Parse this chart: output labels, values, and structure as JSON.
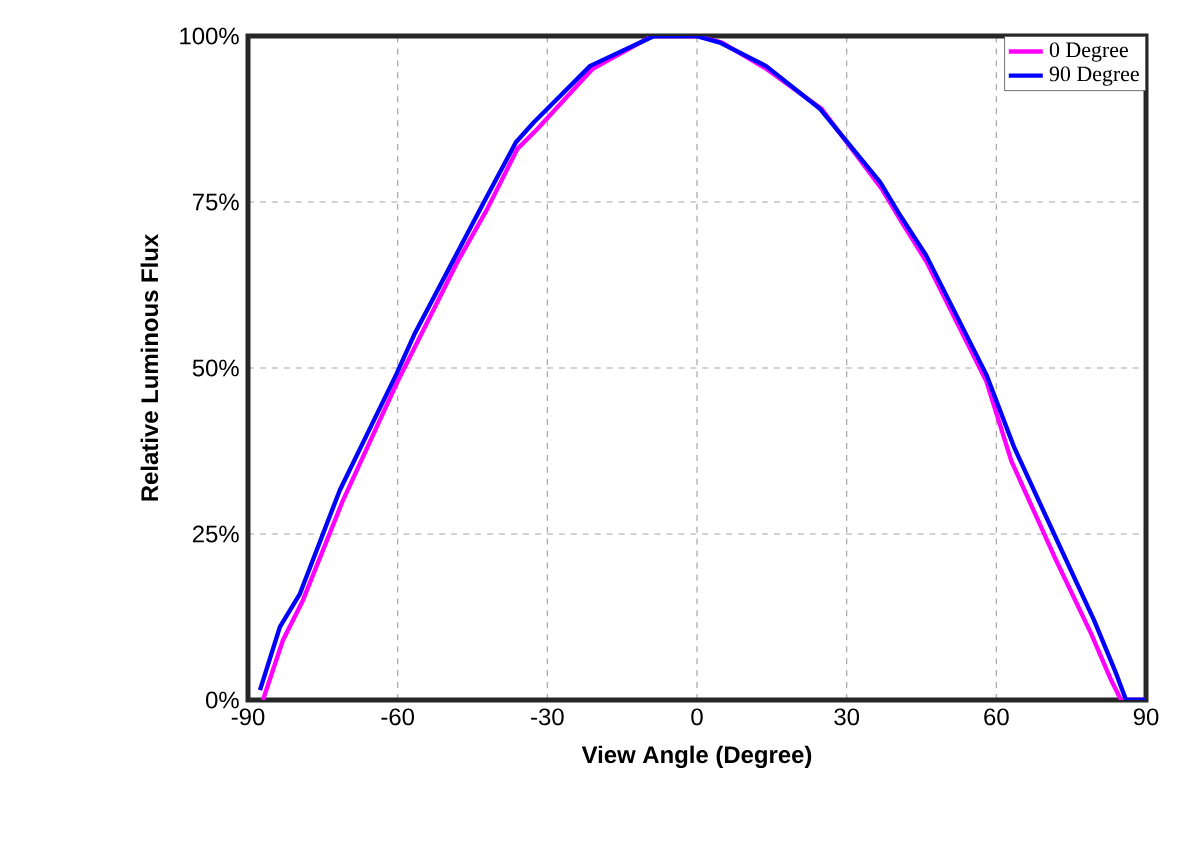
{
  "chart_data": {
    "type": "line",
    "xlabel": "View Angle (Degree)",
    "ylabel": "Relative Luminous Flux",
    "xlim": [
      -90,
      90
    ],
    "xticks": [
      -90,
      -60,
      -30,
      0,
      30,
      60,
      90
    ],
    "ylim": [
      0,
      100
    ],
    "yticks": [
      {
        "value": 0,
        "label": "0%"
      },
      {
        "value": 25,
        "label": "25%"
      },
      {
        "value": 50,
        "label": "50%"
      },
      {
        "value": 75,
        "label": "75%"
      },
      {
        "value": 100,
        "label": "100%"
      }
    ],
    "grid": true,
    "legend": "top right",
    "line_style": "solid",
    "marker": "none",
    "series": [
      {
        "name": "0 Degree",
        "color": "#ff00ff",
        "x": [
          -87,
          -83,
          -79,
          -71,
          -60,
          -56,
          -48,
          -42,
          -36,
          -32,
          -21,
          -9,
          0,
          5,
          14,
          25,
          37,
          41,
          46,
          58,
          63,
          72,
          79,
          83,
          85,
          90
        ],
        "values": [
          0,
          9,
          15,
          30,
          48,
          54,
          66,
          74,
          83,
          86,
          95,
          100,
          100,
          99,
          95,
          89,
          77,
          72,
          66,
          48,
          36,
          21,
          10,
          3,
          0,
          0
        ]
      },
      {
        "name": "90 Degree",
        "color": "#0000ff",
        "x": [
          -87.6,
          -83.6,
          -79.6,
          -71.6,
          -60.3,
          -56.7,
          -48.3,
          -42.7,
          -36.3,
          -32.7,
          -21.4,
          -8.6,
          -0.2,
          4.6,
          13.8,
          24.7,
          36.7,
          40.7,
          45.9,
          58,
          63.6,
          72.8,
          79.6,
          84,
          86,
          90
        ],
        "values": [
          1.5,
          11,
          16,
          31.6,
          49,
          55,
          67,
          75,
          84,
          87,
          95.5,
          100,
          100,
          99,
          95.5,
          89,
          78,
          73,
          67,
          49,
          38,
          23,
          12,
          4,
          0,
          0
        ]
      }
    ]
  }
}
